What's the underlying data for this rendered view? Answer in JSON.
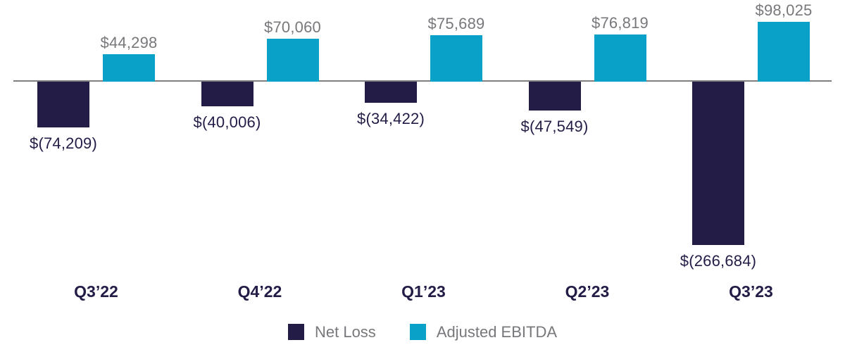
{
  "chart_data": {
    "type": "bar",
    "title": "",
    "xlabel": "",
    "ylabel": "",
    "grid": false,
    "legend_position": "bottom-center",
    "axis_line_color": "#7F7F7F",
    "category_label_color": "#221C46",
    "categories": [
      "Q3’22",
      "Q4’22",
      "Q1’23",
      "Q2’23",
      "Q3’23"
    ],
    "series": [
      {
        "name": "Net Loss",
        "color": "#221C46",
        "label_color": "#221C46",
        "values": [
          -74209,
          -40006,
          -34422,
          -47549,
          -266684
        ],
        "labels": [
          "$(74,209)",
          "$(40,006)",
          "$(34,422)",
          "$(47,549)",
          "$(266,684)"
        ]
      },
      {
        "name": "Adjusted EBITDA",
        "color": "#0AA1C8",
        "label_color": "#77787B",
        "values": [
          44298,
          70060,
          75689,
          76819,
          98025
        ],
        "labels": [
          "$44,298",
          "$70,060",
          "$75,689",
          "$76,819",
          "$98,025"
        ]
      }
    ]
  }
}
